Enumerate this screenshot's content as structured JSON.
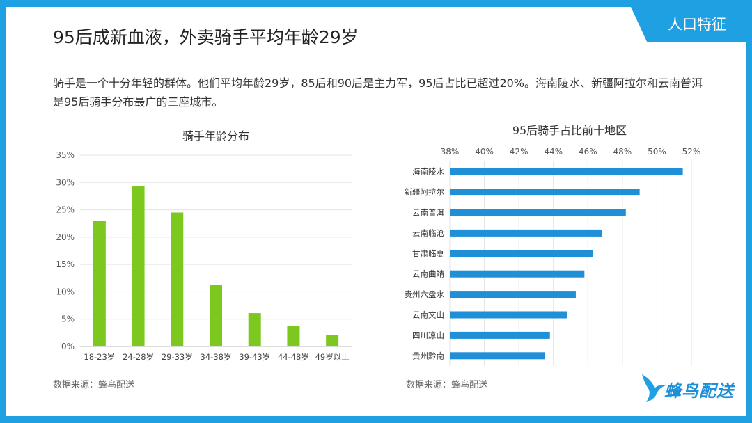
{
  "header": {
    "title": "95后成新血液，外卖骑手平均年龄29岁",
    "tag": "人口特征"
  },
  "description": "骑手是一个十分年轻的群体。他们平均年龄29岁，85后和90后是主力军，95后占比已超过20%。海南陵水、新疆阿拉尔和云南普洱是95后骑手分布最广的三座城市。",
  "footer": {
    "left_source": "数据来源：蜂鸟配送",
    "right_source": "数据来源：蜂鸟配送",
    "logo_text": "蜂鸟配送"
  },
  "colors": {
    "accent": "#1fa0e2",
    "bar_green": "#7dc81f",
    "bar_blue": "#1f8fd8"
  },
  "icons": {
    "logo": "hummingbird-icon"
  },
  "chart_data": [
    {
      "type": "bar",
      "title": "骑手年龄分布",
      "categories": [
        "18-23岁",
        "24-28岁",
        "29-33岁",
        "34-38岁",
        "39-43岁",
        "44-48岁",
        "49岁以上"
      ],
      "values": [
        23,
        29.3,
        24.5,
        11.3,
        6.1,
        3.8,
        2.1
      ],
      "ylim": [
        0,
        35
      ],
      "yticks": [
        "0%",
        "5%",
        "10%",
        "15%",
        "20%",
        "25%",
        "30%",
        "35%"
      ],
      "grid": true
    },
    {
      "type": "bar",
      "orientation": "horizontal",
      "title": "95后骑手占比前十地区",
      "categories": [
        "海南陵水",
        "新疆阿拉尔",
        "云南普洱",
        "云南临沧",
        "甘肃临夏",
        "云南曲靖",
        "贵州六盘水",
        "云南文山",
        "四川凉山",
        "贵州黔南"
      ],
      "values": [
        51.5,
        49.0,
        48.2,
        46.8,
        46.3,
        45.8,
        45.3,
        44.8,
        43.8,
        43.5
      ],
      "xlim": [
        38,
        52
      ],
      "xticks": [
        "38%",
        "40%",
        "42%",
        "44%",
        "46%",
        "48%",
        "50%",
        "52%"
      ],
      "grid": true
    }
  ]
}
